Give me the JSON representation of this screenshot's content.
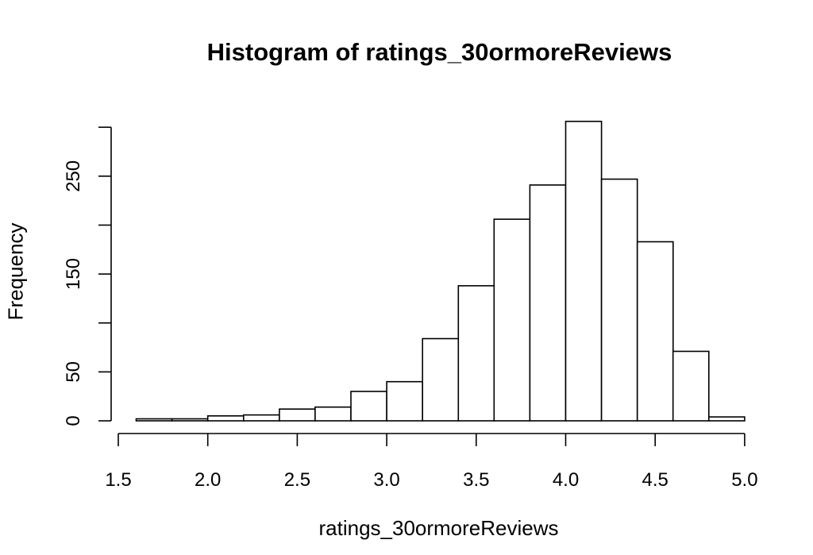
{
  "chart_data": {
    "type": "bar",
    "title": "Histogram of ratings_30ormoreReviews",
    "xlabel": "ratings_30ormoreReviews",
    "ylabel": "Frequency",
    "bin_edges": [
      1.6,
      1.8,
      2.0,
      2.2,
      2.4,
      2.6,
      2.8,
      3.0,
      3.2,
      3.4,
      3.6,
      3.8,
      4.0,
      4.2,
      4.4,
      4.6,
      4.8,
      5.0
    ],
    "values": [
      2,
      2,
      5,
      6,
      12,
      14,
      30,
      40,
      84,
      138,
      206,
      241,
      306,
      247,
      183,
      71,
      4
    ],
    "xlim": [
      1.5,
      5.0
    ],
    "ylim": [
      0,
      300
    ],
    "x_ticks": [
      "1.5",
      "2.0",
      "2.5",
      "3.0",
      "3.5",
      "4.0",
      "4.5",
      "5.0"
    ],
    "y_ticks": [
      "0",
      "50",
      "150",
      "250"
    ],
    "grid": false,
    "legend": "none"
  }
}
